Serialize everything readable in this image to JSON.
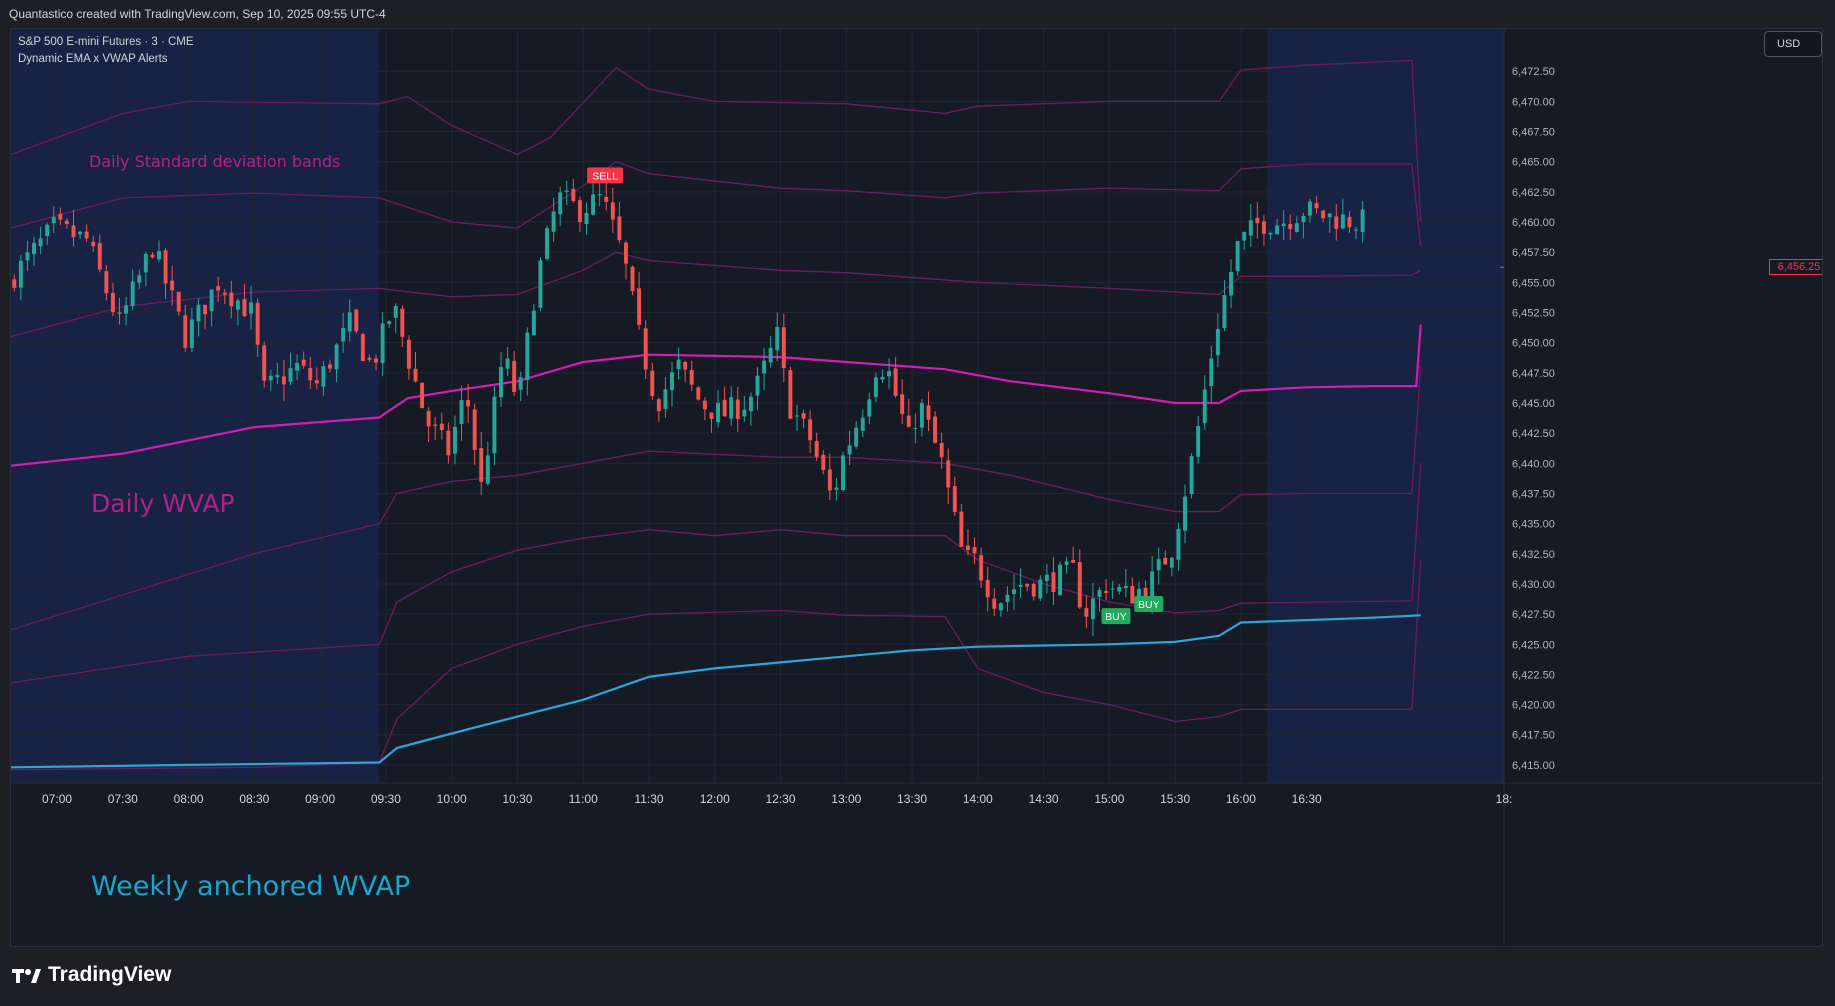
{
  "caption": "Quantastico created with TradingView.com, Sep 10, 2025 09:55 UTC-4",
  "legend": {
    "symbol_line": "S&P 500 E-mini Futures · 3 · CME",
    "indicator_line": "Dynamic EMA x VWAP Alerts"
  },
  "currency": "USD",
  "last_price_label": "6,456.25",
  "annotations": {
    "bands": "Daily Standard deviation bands",
    "daily": "Daily WVAP",
    "weekly": "Weekly anchored WVAP"
  },
  "signals": {
    "sell": "SELL",
    "buy": "BUY"
  },
  "logo_text": "TradingView",
  "colors": {
    "up": "#26a69a",
    "down": "#f05350",
    "daily_vwap": "#d21eb4",
    "bands": "#6b1d5e",
    "weekly_vwap": "#2ea5d6",
    "session_bg": "#172244",
    "grid": "#222634",
    "background": "#161a25"
  },
  "chart_data": {
    "type": "candlestick",
    "timeframe_minutes": 3,
    "x_range": [
      "06:39",
      "18:00"
    ],
    "ylim": [
      6413.5,
      6476
    ],
    "x_ticks": [
      "07:00",
      "07:30",
      "08:00",
      "08:30",
      "09:00",
      "09:30",
      "10:00",
      "10:30",
      "11:00",
      "11:30",
      "12:00",
      "12:30",
      "13:00",
      "13:30",
      "14:00",
      "14:30",
      "15:00",
      "15:30",
      "16:00",
      "16:30",
      "18:"
    ],
    "y_ticks": [
      "6,472.50",
      "6,470.00",
      "6,467.50",
      "6,465.00",
      "6,462.50",
      "6,460.00",
      "6,457.50",
      "6,455.00",
      "6,452.50",
      "6,450.00",
      "6,447.50",
      "6,445.00",
      "6,442.50",
      "6,440.00",
      "6,437.50",
      "6,435.00",
      "6,432.50",
      "6,430.00",
      "6,427.50",
      "6,425.00",
      "6,422.50",
      "6,420.00",
      "6,417.50",
      "6,415.00"
    ],
    "highlight_sessions": [
      [
        "06:39",
        "09:27"
      ],
      [
        "16:12",
        "18:00"
      ]
    ],
    "price_anchors": [
      [
        "06:39",
        6455.0
      ],
      [
        "07:00",
        6459.5
      ],
      [
        "07:15",
        6458.5
      ],
      [
        "07:30",
        6451.5
      ],
      [
        "07:45",
        6458.0
      ],
      [
        "08:00",
        6450.5
      ],
      [
        "08:15",
        6455.0
      ],
      [
        "08:30",
        6452.5
      ],
      [
        "08:36",
        6446.0
      ],
      [
        "08:51",
        6448.0
      ],
      [
        "09:00",
        6446.5
      ],
      [
        "09:15",
        6451.5
      ],
      [
        "09:25",
        6448.0
      ],
      [
        "09:35",
        6453.0
      ],
      [
        "09:50",
        6443.5
      ],
      [
        "10:00",
        6441.0
      ],
      [
        "10:08",
        6446.0
      ],
      [
        "10:15",
        6438.0
      ],
      [
        "10:25",
        6449.0
      ],
      [
        "10:32",
        6445.0
      ],
      [
        "10:40",
        6455.0
      ],
      [
        "10:50",
        6462.0
      ],
      [
        "11:00",
        6461.0
      ],
      [
        "11:10",
        6462.0
      ],
      [
        "11:20",
        6457.0
      ],
      [
        "11:27",
        6450.5
      ],
      [
        "11:35",
        6445.0
      ],
      [
        "11:45",
        6448.0
      ],
      [
        "11:55",
        6445.0
      ],
      [
        "12:05",
        6444.0
      ],
      [
        "12:15",
        6445.0
      ],
      [
        "12:20",
        6446.0
      ],
      [
        "12:30",
        6450.5
      ],
      [
        "12:35",
        6445.0
      ],
      [
        "12:45",
        6442.0
      ],
      [
        "12:55",
        6437.0
      ],
      [
        "13:00",
        6440.5
      ],
      [
        "13:10",
        6445.0
      ],
      [
        "13:15",
        6448.0
      ],
      [
        "13:20",
        6448.0
      ],
      [
        "13:30",
        6442.0
      ],
      [
        "13:35",
        6445.0
      ],
      [
        "13:45",
        6440.0
      ],
      [
        "13:55",
        6432.0
      ],
      [
        "14:00",
        6432.0
      ],
      [
        "14:10",
        6428.5
      ],
      [
        "14:20",
        6430.0
      ],
      [
        "14:30",
        6430.0
      ],
      [
        "14:45",
        6431.0
      ],
      [
        "14:50",
        6427.5
      ],
      [
        "15:00",
        6430.0
      ],
      [
        "15:10",
        6429.0
      ],
      [
        "15:20",
        6430.0
      ],
      [
        "15:30",
        6433.0
      ],
      [
        "15:40",
        6441.0
      ],
      [
        "15:50",
        6451.0
      ],
      [
        "16:00",
        6458.0
      ],
      [
        "16:10",
        6460.0
      ],
      [
        "16:20",
        6460.0
      ],
      [
        "16:30",
        6461.0
      ],
      [
        "16:40",
        6460.5
      ],
      [
        "16:55",
        6460.0
      ]
    ],
    "daily_vwap": [
      [
        "06:39",
        6439.8
      ],
      [
        "07:30",
        6440.8
      ],
      [
        "08:30",
        6443.0
      ],
      [
        "09:27",
        6443.8
      ],
      [
        "09:40",
        6445.4
      ],
      [
        "10:00",
        6446.0
      ],
      [
        "10:30",
        6446.8
      ],
      [
        "11:00",
        6448.4
      ],
      [
        "11:30",
        6449.0
      ],
      [
        "12:30",
        6448.8
      ],
      [
        "13:00",
        6448.4
      ],
      [
        "13:45",
        6447.8
      ],
      [
        "14:15",
        6446.8
      ],
      [
        "15:00",
        6445.8
      ],
      [
        "15:30",
        6445.0
      ],
      [
        "15:50",
        6445.0
      ],
      [
        "16:00",
        6446.0
      ],
      [
        "16:30",
        6446.3
      ],
      [
        "17:00",
        6446.4
      ],
      [
        "17:20",
        6446.4
      ],
      [
        "17:22",
        6451.5
      ]
    ],
    "weekly_vwap": [
      [
        "06:39",
        6414.8
      ],
      [
        "08:00",
        6415.0
      ],
      [
        "09:27",
        6415.2
      ],
      [
        "09:35",
        6416.4
      ],
      [
        "10:00",
        6417.6
      ],
      [
        "10:30",
        6419.0
      ],
      [
        "11:00",
        6420.4
      ],
      [
        "11:30",
        6422.3
      ],
      [
        "12:00",
        6423.0
      ],
      [
        "12:30",
        6423.5
      ],
      [
        "13:00",
        6424.0
      ],
      [
        "13:30",
        6424.5
      ],
      [
        "14:00",
        6424.8
      ],
      [
        "15:00",
        6425.0
      ],
      [
        "15:30",
        6425.2
      ],
      [
        "15:50",
        6425.7
      ],
      [
        "16:00",
        6426.8
      ],
      [
        "16:30",
        6427.0
      ],
      [
        "17:00",
        6427.2
      ],
      [
        "17:22",
        6427.4
      ]
    ],
    "bands": [
      {
        "name": "+3",
        "points": [
          [
            "06:39",
            6465.6
          ],
          [
            "07:30",
            6469.0
          ],
          [
            "08:00",
            6470.0
          ],
          [
            "09:27",
            6469.8
          ],
          [
            "09:40",
            6470.4
          ],
          [
            "10:00",
            6468.0
          ],
          [
            "10:30",
            6465.6
          ],
          [
            "10:45",
            6467.0
          ],
          [
            "11:15",
            6472.8
          ],
          [
            "11:30",
            6471.0
          ],
          [
            "12:00",
            6470.0
          ],
          [
            "13:00",
            6469.8
          ],
          [
            "13:45",
            6469.0
          ],
          [
            "14:00",
            6469.6
          ],
          [
            "15:00",
            6470.0
          ],
          [
            "15:50",
            6470.0
          ],
          [
            "16:00",
            6472.6
          ],
          [
            "16:30",
            6473.0
          ],
          [
            "17:18",
            6473.4
          ],
          [
            "17:22",
            6460.0
          ]
        ]
      },
      {
        "name": "+2",
        "points": [
          [
            "06:39",
            6459.5
          ],
          [
            "07:30",
            6462.0
          ],
          [
            "08:30",
            6462.4
          ],
          [
            "09:27",
            6462.0
          ],
          [
            "10:00",
            6460.0
          ],
          [
            "10:30",
            6459.5
          ],
          [
            "11:00",
            6463.0
          ],
          [
            "11:15",
            6465.0
          ],
          [
            "11:30",
            6464.0
          ],
          [
            "12:30",
            6462.8
          ],
          [
            "13:00",
            6462.6
          ],
          [
            "13:45",
            6462.0
          ],
          [
            "14:00",
            6462.4
          ],
          [
            "15:00",
            6462.8
          ],
          [
            "15:50",
            6462.6
          ],
          [
            "16:00",
            6464.4
          ],
          [
            "16:30",
            6464.8
          ],
          [
            "17:18",
            6464.8
          ],
          [
            "17:22",
            6458.0
          ]
        ]
      },
      {
        "name": "+1",
        "points": [
          [
            "06:39",
            6450.5
          ],
          [
            "07:30",
            6453.0
          ],
          [
            "08:30",
            6454.2
          ],
          [
            "09:27",
            6454.5
          ],
          [
            "10:00",
            6453.8
          ],
          [
            "10:30",
            6454.0
          ],
          [
            "11:00",
            6456.0
          ],
          [
            "11:15",
            6457.5
          ],
          [
            "11:30",
            6456.8
          ],
          [
            "12:30",
            6456.0
          ],
          [
            "13:00",
            6455.8
          ],
          [
            "14:00",
            6455.0
          ],
          [
            "15:00",
            6454.5
          ],
          [
            "15:50",
            6454.0
          ],
          [
            "16:00",
            6455.5
          ],
          [
            "16:30",
            6455.5
          ],
          [
            "17:18",
            6455.6
          ],
          [
            "17:22",
            6456.0
          ]
        ]
      },
      {
        "name": "-1",
        "points": [
          [
            "06:39",
            6426.2
          ],
          [
            "08:30",
            6432.5
          ],
          [
            "09:27",
            6435.0
          ],
          [
            "09:35",
            6437.5
          ],
          [
            "10:00",
            6438.5
          ],
          [
            "10:30",
            6439.0
          ],
          [
            "11:00",
            6440.0
          ],
          [
            "11:30",
            6441.0
          ],
          [
            "12:30",
            6440.5
          ],
          [
            "13:00",
            6440.5
          ],
          [
            "13:45",
            6440.0
          ],
          [
            "14:15",
            6439.0
          ],
          [
            "15:00",
            6437.0
          ],
          [
            "15:30",
            6436.0
          ],
          [
            "15:50",
            6436.0
          ],
          [
            "16:00",
            6437.4
          ],
          [
            "16:30",
            6437.5
          ],
          [
            "17:18",
            6437.5
          ],
          [
            "17:22",
            6448.0
          ]
        ]
      },
      {
        "name": "-2",
        "points": [
          [
            "06:39",
            6421.8
          ],
          [
            "08:00",
            6424.0
          ],
          [
            "09:27",
            6425.0
          ],
          [
            "09:35",
            6428.5
          ],
          [
            "10:00",
            6431.0
          ],
          [
            "10:30",
            6432.8
          ],
          [
            "11:00",
            6433.8
          ],
          [
            "11:30",
            6434.5
          ],
          [
            "12:00",
            6434.0
          ],
          [
            "12:30",
            6434.5
          ],
          [
            "13:00",
            6434.0
          ],
          [
            "13:45",
            6434.0
          ],
          [
            "14:00",
            6432.0
          ],
          [
            "14:30",
            6430.0
          ],
          [
            "15:00",
            6428.5
          ],
          [
            "15:30",
            6427.6
          ],
          [
            "15:50",
            6427.8
          ],
          [
            "16:00",
            6428.4
          ],
          [
            "17:18",
            6428.6
          ],
          [
            "17:22",
            6440.0
          ]
        ]
      },
      {
        "name": "-3",
        "points": [
          [
            "06:39",
            6414.6
          ],
          [
            "08:30",
            6414.8
          ],
          [
            "09:27",
            6415.2
          ],
          [
            "09:35",
            6418.8
          ],
          [
            "10:00",
            6423.0
          ],
          [
            "10:30",
            6425.0
          ],
          [
            "11:00",
            6426.5
          ],
          [
            "11:30",
            6427.5
          ],
          [
            "12:30",
            6427.8
          ],
          [
            "13:00",
            6427.4
          ],
          [
            "13:45",
            6427.3
          ],
          [
            "14:00",
            6423.0
          ],
          [
            "14:30",
            6421.0
          ],
          [
            "15:00",
            6420.0
          ],
          [
            "15:30",
            6418.6
          ],
          [
            "15:50",
            6419.0
          ],
          [
            "16:00",
            6419.6
          ],
          [
            "17:18",
            6419.6
          ],
          [
            "17:22",
            6432.0
          ]
        ]
      }
    ],
    "signals": [
      {
        "label": "SELL",
        "time": "11:10",
        "price": 6463.2
      },
      {
        "label": "BUY",
        "time": "15:03",
        "price": 6428.0
      },
      {
        "label": "BUY",
        "time": "15:18",
        "price": 6429.0
      }
    ],
    "last_price": 6456.25
  }
}
